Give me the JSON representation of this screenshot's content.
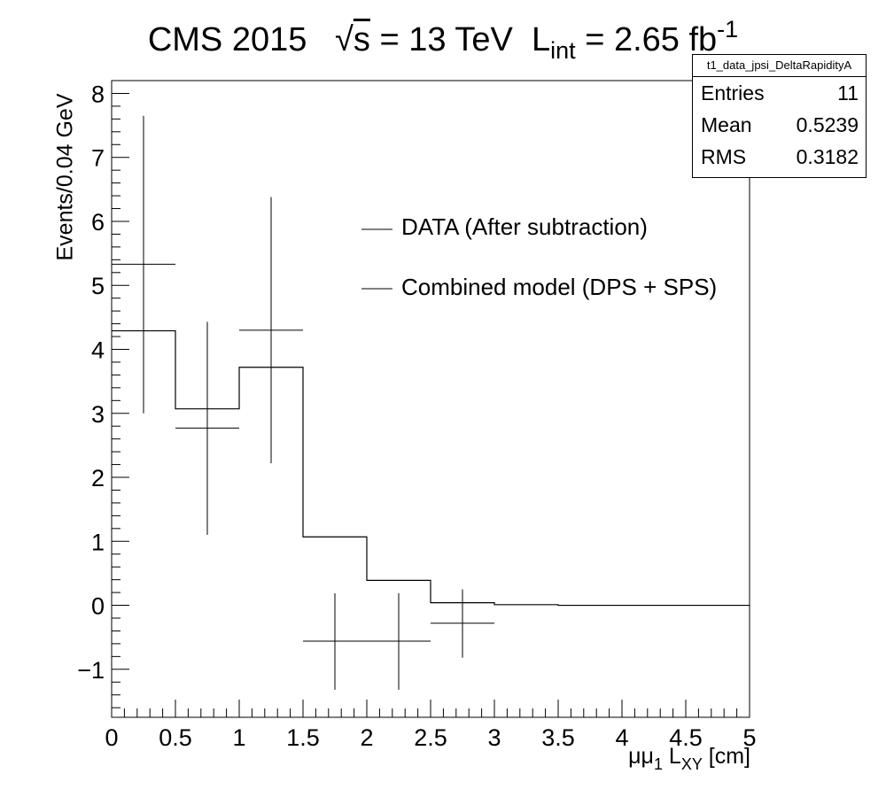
{
  "title": {
    "prefix": "CMS 2015",
    "energy_symbol": "s",
    "energy_value": " = 13 TeV",
    "lumi_symbol": "L",
    "lumi_sub": "int",
    "lumi_value": " = 2.65 fb",
    "lumi_sup": "-1"
  },
  "stats_box": {
    "name": "t1_data_jpsi_DeltaRapidityA",
    "entries_label": "Entries",
    "entries_value": "11",
    "mean_label": "Mean",
    "mean_value": "0.5239",
    "rms_label": "RMS",
    "rms_value": "0.3182"
  },
  "xlabel_parts": {
    "base": "μμ",
    "sub1": "1",
    "mid": " L",
    "sub2": "XY",
    "tail": " [cm]"
  },
  "chart_data": {
    "type": "line",
    "title": "CMS 2015 √s = 13 TeV L_int = 2.65 fb^-1",
    "xlabel": "μμ1 LXY [cm]",
    "ylabel": "Events/0.04 GeV",
    "xlim": [
      0,
      5
    ],
    "ylim": [
      -1.75,
      8.2
    ],
    "x_ticks": [
      0,
      0.5,
      1,
      1.5,
      2,
      2.5,
      3,
      3.5,
      4,
      4.5,
      5
    ],
    "x_tick_labels": [
      "0",
      "0.5",
      "1",
      "1.5",
      "2",
      "2.5",
      "3",
      "3.5",
      "4",
      "4.5",
      "5"
    ],
    "y_ticks": [
      -1,
      0,
      1,
      2,
      3,
      4,
      5,
      6,
      7,
      8
    ],
    "y_tick_labels": [
      "−1",
      "0",
      "1",
      "2",
      "3",
      "4",
      "5",
      "6",
      "7",
      "8"
    ],
    "grid": false,
    "legend_position": "top-right",
    "series": [
      {
        "name": "DATA (After subtraction)",
        "kind": "points_with_errors",
        "color": "#000000",
        "bin_half_width": 0.25,
        "points": [
          {
            "x": 0.25,
            "y": 5.33,
            "ylo": 3.0,
            "yhi": 7.65
          },
          {
            "x": 0.75,
            "y": 2.77,
            "ylo": 1.1,
            "yhi": 4.43
          },
          {
            "x": 1.25,
            "y": 4.3,
            "ylo": 2.22,
            "yhi": 6.38
          },
          {
            "x": 1.75,
            "y": -0.56,
            "ylo": -1.32,
            "yhi": 0.19
          },
          {
            "x": 2.25,
            "y": -0.56,
            "ylo": -1.32,
            "yhi": 0.19
          },
          {
            "x": 2.75,
            "y": -0.28,
            "ylo": -0.82,
            "yhi": 0.25
          }
        ]
      },
      {
        "name": "Combined model (DPS + SPS)",
        "kind": "step_histogram",
        "color": "#000000",
        "bin_edges": [
          0,
          0.5,
          1,
          1.5,
          2,
          2.5,
          3,
          3.5,
          4,
          4.5,
          5
        ],
        "values": [
          4.29,
          3.07,
          3.72,
          1.07,
          0.39,
          0.04,
          0.01,
          0.0,
          0.0,
          0.0
        ]
      }
    ]
  }
}
